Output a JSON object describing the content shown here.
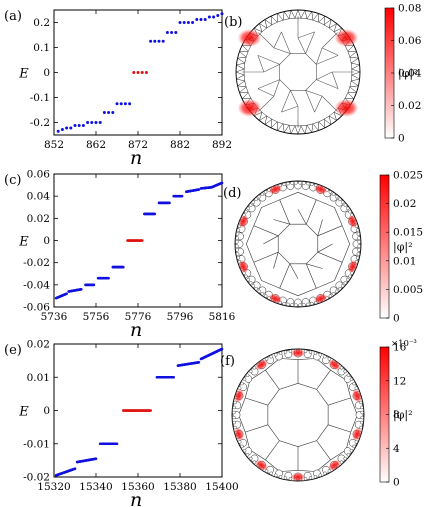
{
  "chart_data": [
    {
      "type": "scatter",
      "panel": "(a)",
      "xlabel": "n",
      "ylabel": "E",
      "xlim": [
        852,
        892
      ],
      "ylim": [
        -0.25,
        0.25
      ],
      "xticks": [
        852,
        862,
        872,
        882,
        892
      ],
      "yticks": [
        -0.2,
        -0.1,
        0,
        0.1,
        0.2
      ],
      "xtick_labels": [
        "852",
        "862",
        "872",
        "882",
        "892"
      ],
      "ytick_labels": [
        "-0.2",
        "-0.1",
        "0",
        "0.1",
        "0.2"
      ],
      "grid": false,
      "series": [
        {
          "color": "#1010e0",
          "points": [
            [
              853,
              -0.235
            ],
            [
              854,
              -0.228
            ],
            [
              855,
              -0.222
            ],
            [
              856,
              -0.222
            ],
            [
              857,
              -0.212
            ],
            [
              858,
              -0.212
            ],
            [
              859,
              -0.212
            ],
            [
              860,
              -0.2
            ],
            [
              861,
              -0.2
            ],
            [
              862,
              -0.2
            ],
            [
              863,
              -0.2
            ],
            [
              864,
              -0.16
            ],
            [
              865,
              -0.16
            ],
            [
              866,
              -0.16
            ],
            [
              867,
              -0.125
            ],
            [
              868,
              -0.125
            ],
            [
              869,
              -0.125
            ],
            [
              870,
              -0.125
            ],
            [
              875,
              0.125
            ],
            [
              876,
              0.125
            ],
            [
              877,
              0.125
            ],
            [
              878,
              0.125
            ],
            [
              879,
              0.16
            ],
            [
              880,
              0.16
            ],
            [
              881,
              0.16
            ],
            [
              882,
              0.2
            ],
            [
              883,
              0.2
            ],
            [
              884,
              0.2
            ],
            [
              885,
              0.2
            ],
            [
              886,
              0.212
            ],
            [
              887,
              0.212
            ],
            [
              888,
              0.212
            ],
            [
              889,
              0.222
            ],
            [
              890,
              0.222
            ],
            [
              891,
              0.228
            ],
            [
              892,
              0.235
            ]
          ]
        },
        {
          "color": "#e01010",
          "points": [
            [
              871,
              0
            ],
            [
              872,
              0
            ],
            [
              873,
              0
            ],
            [
              874,
              0
            ]
          ]
        }
      ]
    },
    {
      "type": "scatter",
      "panel": "(c)",
      "xlabel": "n",
      "ylabel": "E",
      "xlim": [
        5736,
        5816
      ],
      "ylim": [
        -0.06,
        0.06
      ],
      "xticks": [
        5736,
        5756,
        5776,
        5796,
        5816
      ],
      "yticks": [
        -0.06,
        -0.04,
        -0.02,
        0,
        0.02,
        0.04,
        0.06
      ],
      "xtick_labels": [
        "5736",
        "5756",
        "5776",
        "5796",
        "5816"
      ],
      "ytick_labels": [
        "-0.06",
        "-0.04",
        "-0.02",
        "0",
        "0.02",
        "0.04",
        "0.06"
      ],
      "grid": false,
      "segments": [
        {
          "color": "#1010e0",
          "x0": 5737,
          "x1": 5742,
          "y0": -0.052,
          "y1": -0.048
        },
        {
          "color": "#1010e0",
          "x0": 5743,
          "x1": 5749,
          "y0": -0.046,
          "y1": -0.044
        },
        {
          "color": "#1010e0",
          "x0": 5751,
          "x1": 5755,
          "y0": -0.04,
          "y1": -0.04
        },
        {
          "color": "#1010e0",
          "x0": 5757,
          "x1": 5762,
          "y0": -0.034,
          "y1": -0.034
        },
        {
          "color": "#1010e0",
          "x0": 5764,
          "x1": 5769,
          "y0": -0.024,
          "y1": -0.024
        },
        {
          "color": "#e01010",
          "x0": 5771,
          "x1": 5778,
          "y0": 0,
          "y1": 0
        },
        {
          "color": "#1010e0",
          "x0": 5779,
          "x1": 5784,
          "y0": 0.024,
          "y1": 0.024
        },
        {
          "color": "#1010e0",
          "x0": 5786,
          "x1": 5791,
          "y0": 0.034,
          "y1": 0.034
        },
        {
          "color": "#1010e0",
          "x0": 5793,
          "x1": 5797,
          "y0": 0.04,
          "y1": 0.04
        },
        {
          "color": "#1010e0",
          "x0": 5799,
          "x1": 5805,
          "y0": 0.044,
          "y1": 0.046
        },
        {
          "color": "#1010e0",
          "x0": 5806,
          "x1": 5811,
          "y0": 0.047,
          "y1": 0.048
        },
        {
          "color": "#1010e0",
          "x0": 5811,
          "x1": 5816,
          "y0": 0.048,
          "y1": 0.052
        }
      ]
    },
    {
      "type": "scatter",
      "panel": "(e)",
      "xlabel": "n",
      "ylabel": "E",
      "xlim": [
        15320,
        15400
      ],
      "ylim": [
        -0.02,
        0.02
      ],
      "xticks": [
        15320,
        15340,
        15360,
        15380,
        15400
      ],
      "yticks": [
        -0.02,
        -0.01,
        0,
        0.01,
        0.02
      ],
      "xtick_labels": [
        "15320",
        "15340",
        "15360",
        "15380",
        "15400"
      ],
      "ytick_labels": [
        "-0.02",
        "-0.01",
        "0",
        "0.01",
        "0.02"
      ],
      "grid": false,
      "segments": [
        {
          "color": "#1010e0",
          "x0": 15321,
          "x1": 15330,
          "y0": -0.0195,
          "y1": -0.0175
        },
        {
          "color": "#1010e0",
          "x0": 15331,
          "x1": 15340,
          "y0": -0.0155,
          "y1": -0.0145
        },
        {
          "color": "#1010e0",
          "x0": 15342,
          "x1": 15350,
          "y0": -0.01,
          "y1": -0.01
        },
        {
          "color": "#e01010",
          "x0": 15353,
          "x1": 15366,
          "y0": 0,
          "y1": 0
        },
        {
          "color": "#1010e0",
          "x0": 15369,
          "x1": 15377,
          "y0": 0.01,
          "y1": 0.01
        },
        {
          "color": "#1010e0",
          "x0": 15379,
          "x1": 15389,
          "y0": 0.0135,
          "y1": 0.0145
        },
        {
          "color": "#1010e0",
          "x0": 15390,
          "x1": 15400,
          "y0": 0.0155,
          "y1": 0.0185
        }
      ]
    },
    {
      "type": "heatmap",
      "panel": "(b)",
      "colorbar_label": "|φ|²",
      "clim": [
        0,
        0.08
      ],
      "ticks": [
        0,
        0.02,
        0.04,
        0.06,
        0.08
      ],
      "tick_labels": [
        "0",
        "0.02",
        "0.04",
        "0.06",
        "0.08"
      ],
      "colormap": [
        "#ffffff",
        "#ff0000"
      ]
    },
    {
      "type": "heatmap",
      "panel": "(d)",
      "colorbar_label": "|φ|²",
      "clim": [
        0,
        0.025
      ],
      "ticks": [
        0,
        0.005,
        0.01,
        0.015,
        0.02,
        0.025
      ],
      "tick_labels": [
        "0",
        "0.005",
        "0.01",
        "0.015",
        "0.02",
        "0.025"
      ],
      "colormap": [
        "#ffffff",
        "#ff0000"
      ]
    },
    {
      "type": "heatmap",
      "panel": "(f)",
      "colorbar_label": "|φ|²",
      "scale_note": "×10⁻³",
      "clim": [
        0,
        16
      ],
      "ticks": [
        0,
        4,
        8,
        12,
        16
      ],
      "tick_labels": [
        "0",
        "4",
        "8",
        "12",
        "16"
      ],
      "colormap": [
        "#ffffff",
        "#ff0000"
      ]
    }
  ],
  "legend": {
    "type": "none"
  }
}
